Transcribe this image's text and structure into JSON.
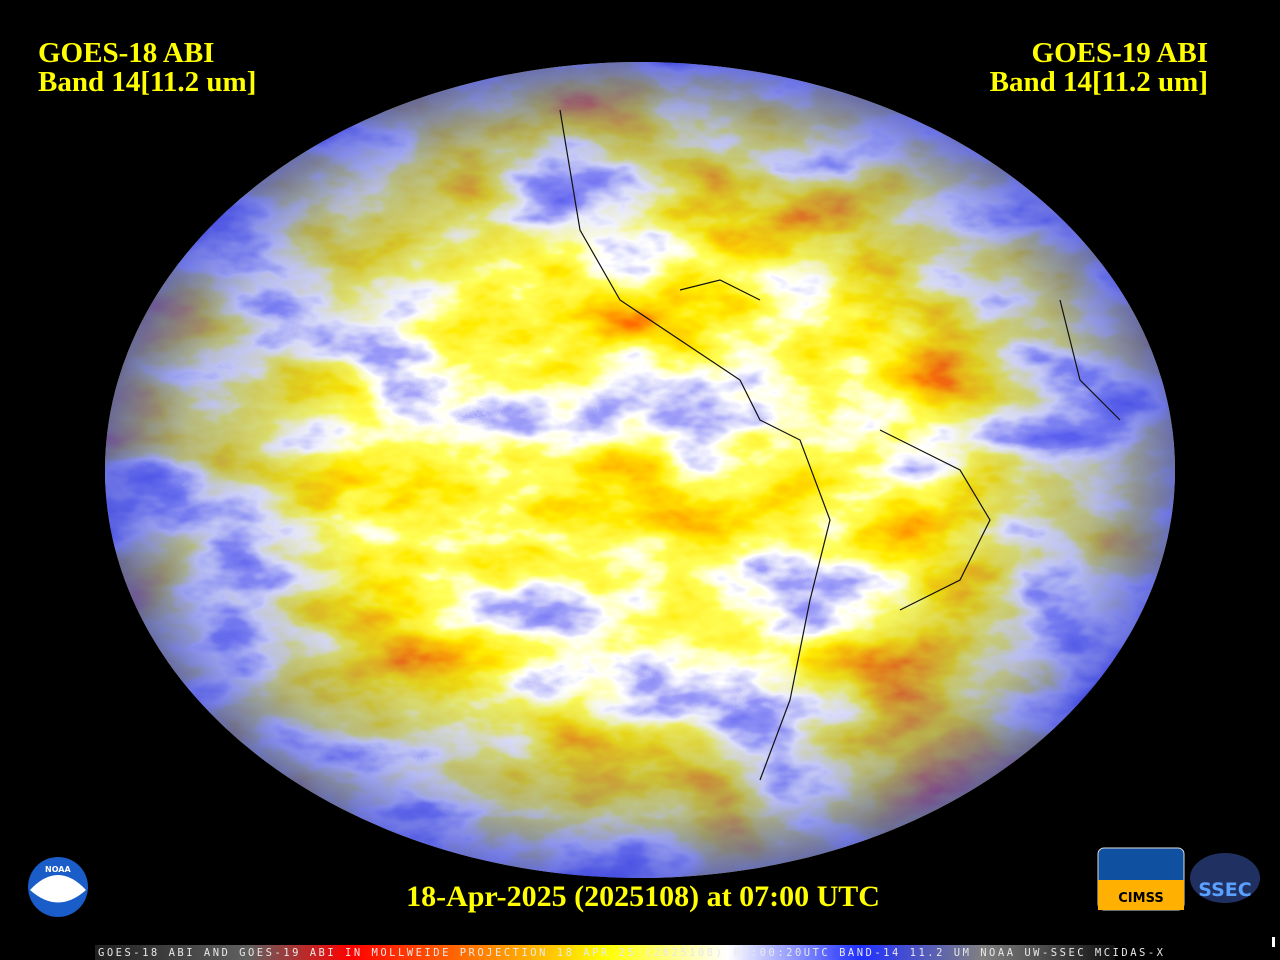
{
  "header": {
    "left": {
      "line1": "GOES-18 ABI",
      "line2": "Band 14[11.2 um]"
    },
    "right": {
      "line1": "GOES-19 ABI",
      "line2": "Band 14[11.2 um]"
    }
  },
  "timestamp": "18-Apr-2025 (2025108) at 07:00 UTC",
  "footer_banner": "GOES-18 ABI AND GOES-19 ABI IN MOLLWEIDE PROJECTION 18 APR 25 (2025108) 07:00:20UTC BAND-14 11.2 UM NOAA UW-SSEC MCIDAS-X",
  "logos": {
    "noaa": "NOAA",
    "cimss": "CIMSS",
    "ssec": "SSEC"
  }
}
